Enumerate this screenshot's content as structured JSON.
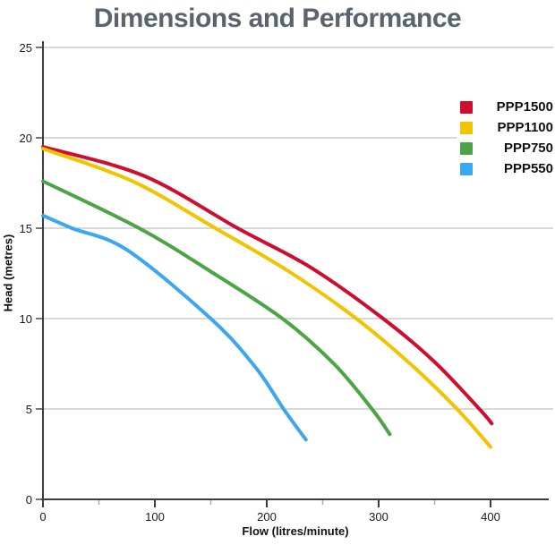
{
  "chart_data": {
    "type": "line",
    "title": "Dimensions and Performance",
    "xlabel": "Flow (litres/minute)",
    "ylabel": "Head (metres)",
    "xlim": [
      0,
      400
    ],
    "ylim": [
      0,
      25
    ],
    "x_major_ticks": [
      0,
      100,
      200,
      300,
      400
    ],
    "x_minor_ticks": [
      50,
      150,
      250,
      350
    ],
    "y_ticks": [
      0,
      5,
      10,
      15,
      20,
      25
    ],
    "grid": "horizontal",
    "legend_position": "top-right",
    "series": [
      {
        "name": "PPP1500",
        "color": "#CE0E2F",
        "points": [
          [
            0,
            19.5
          ],
          [
            90,
            17.9
          ],
          [
            174,
            15
          ],
          [
            240,
            12.8
          ],
          [
            304,
            10
          ],
          [
            350,
            7.6
          ],
          [
            390,
            5
          ],
          [
            401,
            4.2
          ]
        ]
      },
      {
        "name": "PPP1100",
        "color": "#F2C300",
        "points": [
          [
            0,
            19.4
          ],
          [
            80,
            17.6
          ],
          [
            154,
            15
          ],
          [
            220,
            12.6
          ],
          [
            280,
            10
          ],
          [
            330,
            7.4
          ],
          [
            370,
            5
          ],
          [
            400,
            2.9
          ]
        ]
      },
      {
        "name": "PPP750",
        "color": "#4BA546",
        "points": [
          [
            0,
            17.6
          ],
          [
            86,
            15
          ],
          [
            150,
            12.6
          ],
          [
            214,
            10
          ],
          [
            260,
            7.5
          ],
          [
            294,
            5
          ],
          [
            310,
            3.6
          ]
        ]
      },
      {
        "name": "PPP550",
        "color": "#3BA7F0",
        "points": [
          [
            0,
            15.7
          ],
          [
            26,
            15
          ],
          [
            75,
            13.8
          ],
          [
            150,
            10
          ],
          [
            190,
            7.3
          ],
          [
            215,
            5
          ],
          [
            235,
            3.3
          ]
        ]
      }
    ]
  },
  "colors": {
    "title": "#5A646E",
    "axis": "#3C3C3C",
    "tick": "#4A4A4A",
    "minor_tick": "#ADADAD",
    "grid": "#B2B2B2",
    "tick_label": "#1A1A1A"
  }
}
